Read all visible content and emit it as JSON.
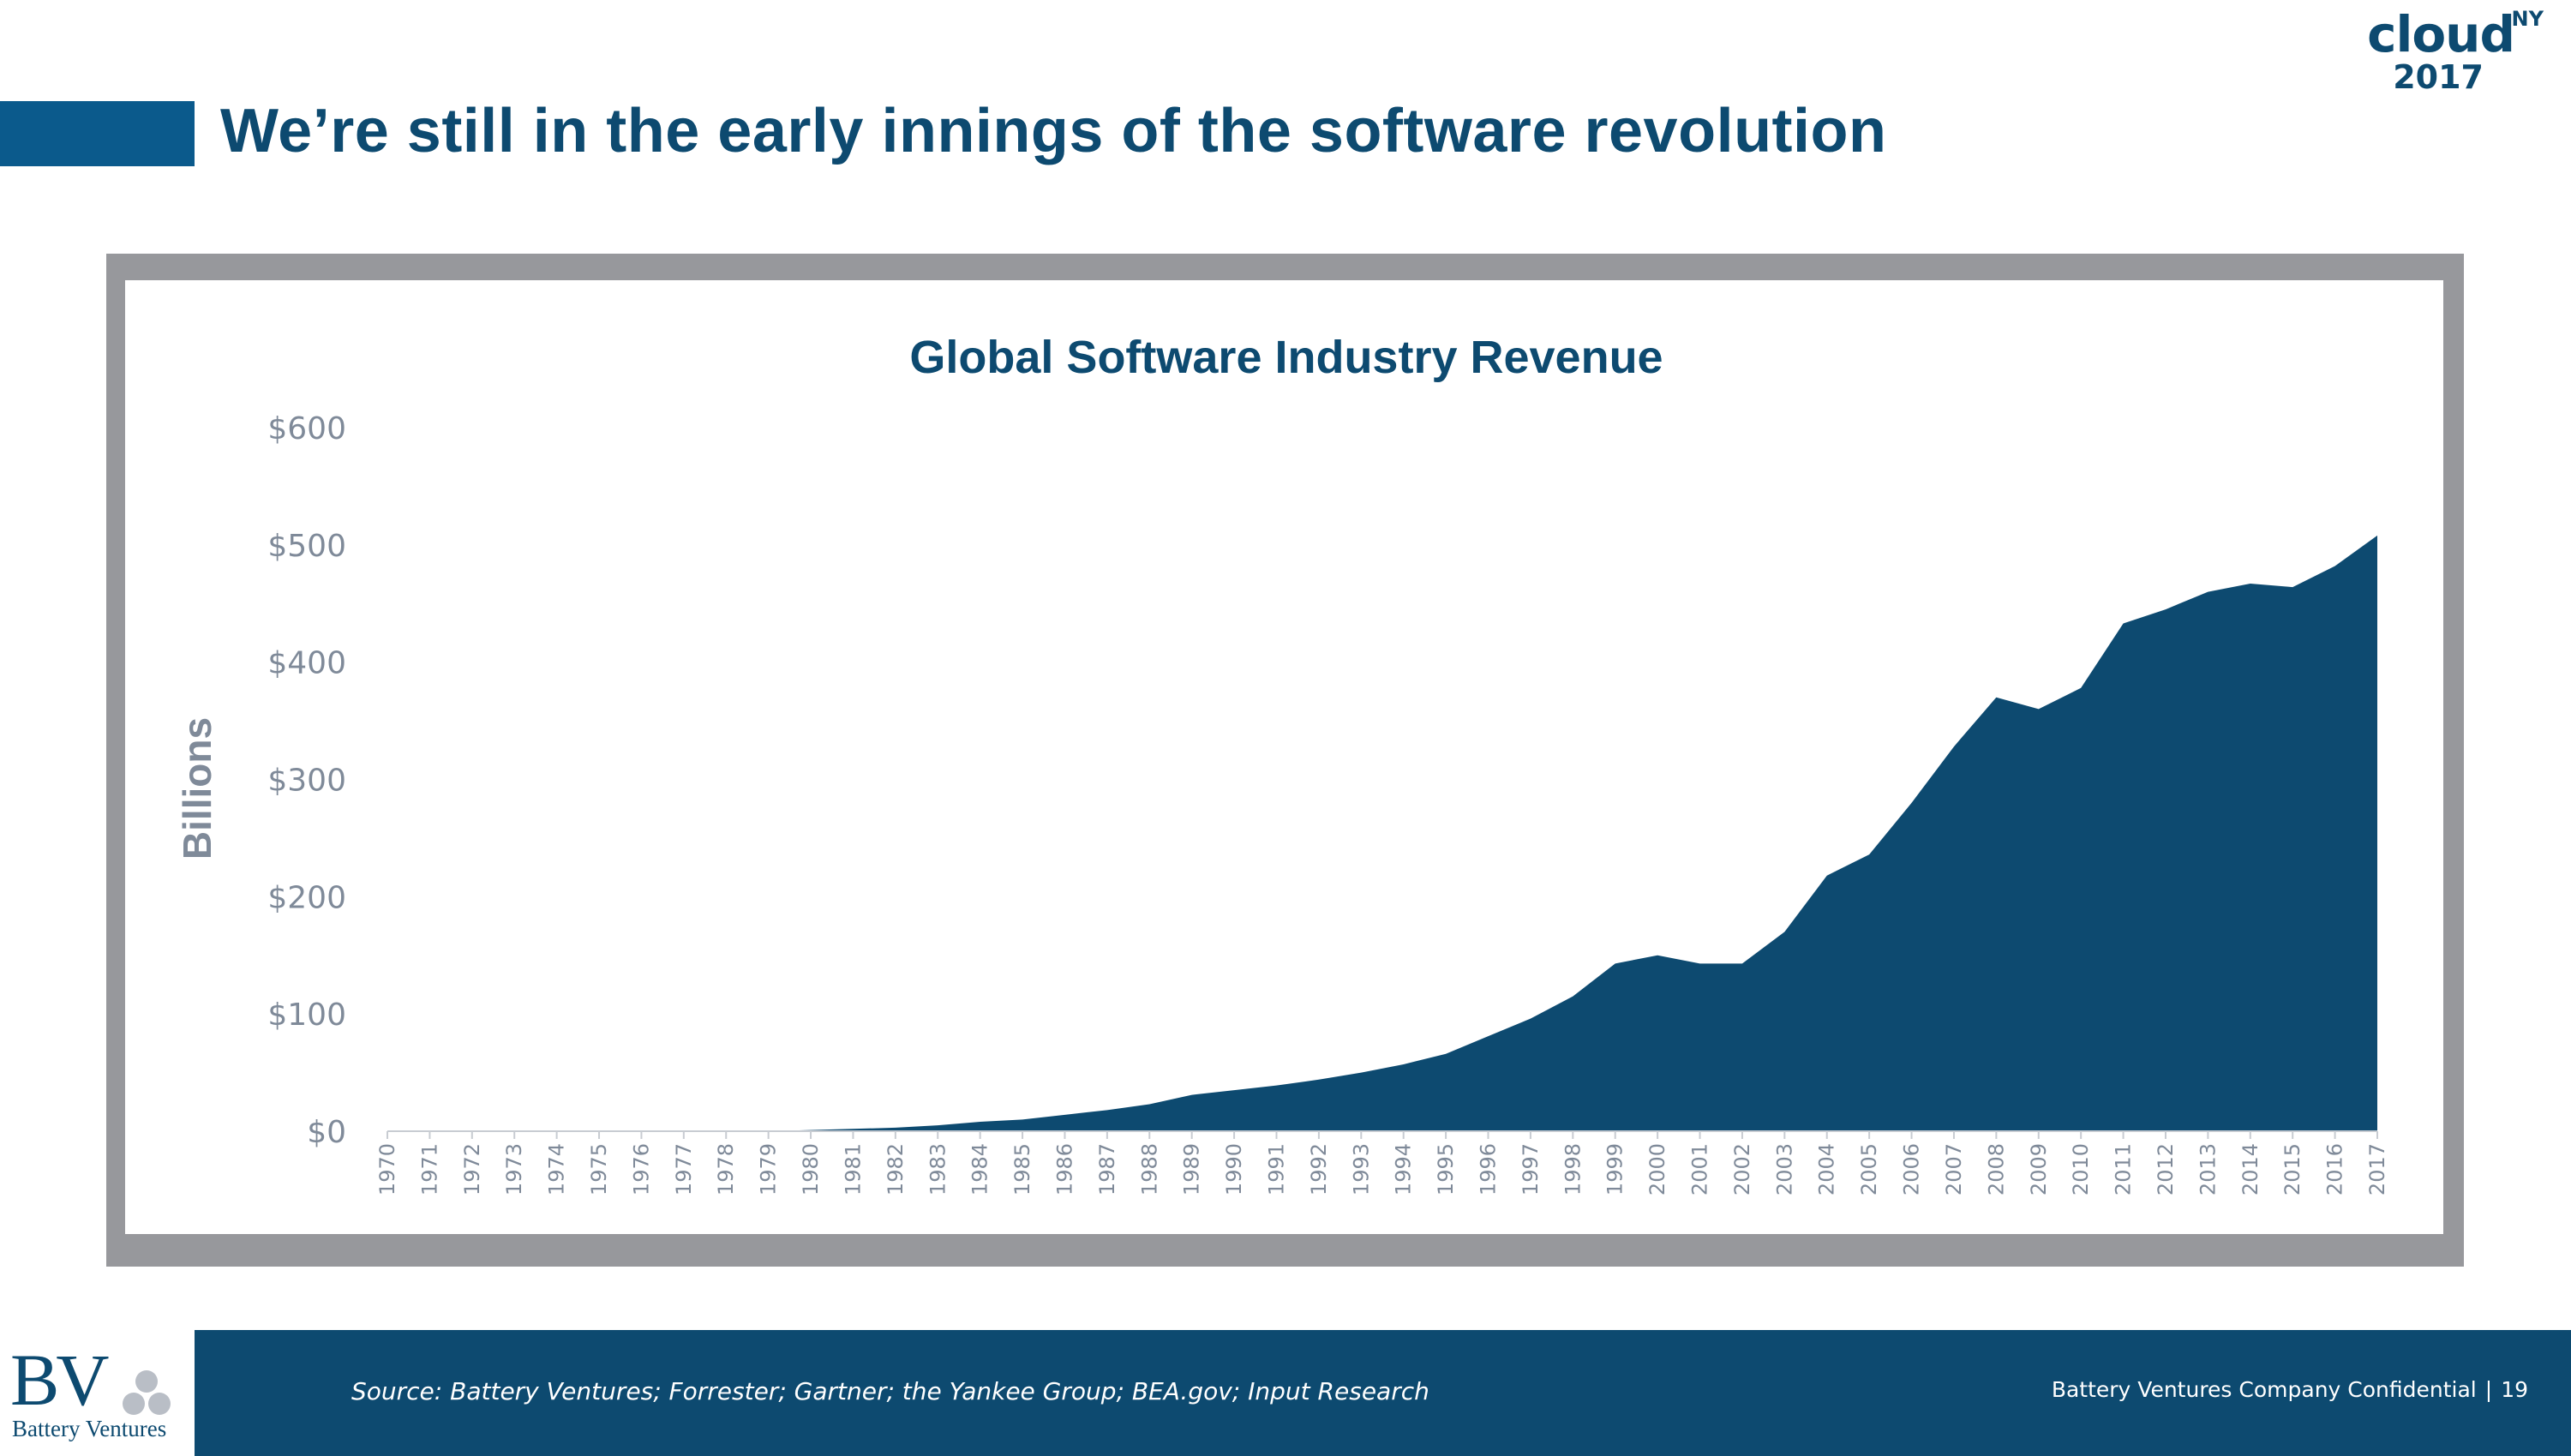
{
  "slide": {
    "title": "We’re still in the early innings of the software revolution",
    "logo": {
      "word": "cloud",
      "superscript": "NY",
      "year": "2017"
    }
  },
  "footer": {
    "source": "Source: Battery Ventures; Forrester; Gartner; the Yankee Group; BEA.gov; Input Research",
    "confidential": "Battery Ventures Company Confidential",
    "separator": "|",
    "page_number": "19",
    "company_logo_letters": "BV",
    "company_name": "Battery Ventures"
  },
  "colors": {
    "primary": "#0d4a70",
    "accent_bar": "#0b5a8c",
    "area_fill": "#0d4a70",
    "frame": "#97989c",
    "axis_text": "#7f8a99"
  },
  "chart_data": {
    "type": "area",
    "title": "Global Software Industry Revenue",
    "ylabel": "Billions",
    "xlabel": "",
    "ylim": [
      0,
      600
    ],
    "yticks": [
      0,
      100,
      200,
      300,
      400,
      500,
      600
    ],
    "ytick_labels": [
      "$0",
      "$100",
      "$200",
      "$300",
      "$400",
      "$500",
      "$600"
    ],
    "categories": [
      "1970",
      "1971",
      "1972",
      "1973",
      "1974",
      "1975",
      "1976",
      "1977",
      "1978",
      "1979",
      "1980",
      "1981",
      "1982",
      "1983",
      "1984",
      "1985",
      "1986",
      "1987",
      "1988",
      "1989",
      "1990",
      "1991",
      "1992",
      "1993",
      "1994",
      "1995",
      "1996",
      "1997",
      "1998",
      "1999",
      "2000",
      "2001",
      "2002",
      "2003",
      "2004",
      "2005",
      "2006",
      "2007",
      "2008",
      "2009",
      "2010",
      "2011",
      "2012",
      "2013",
      "2014",
      "2015",
      "2016",
      "2017"
    ],
    "series": [
      {
        "values": [
          0,
          0,
          0,
          0,
          0,
          0,
          0,
          0,
          0,
          0,
          1,
          2,
          3,
          5,
          8,
          10,
          14,
          18,
          23,
          31,
          35,
          39,
          44,
          50,
          57,
          66,
          81,
          96,
          115,
          143,
          150,
          143,
          143,
          170,
          218,
          236,
          280,
          328,
          370,
          360,
          378,
          433,
          445,
          460,
          467,
          464,
          482,
          508
        ]
      }
    ],
    "grid": false,
    "legend": "none"
  }
}
